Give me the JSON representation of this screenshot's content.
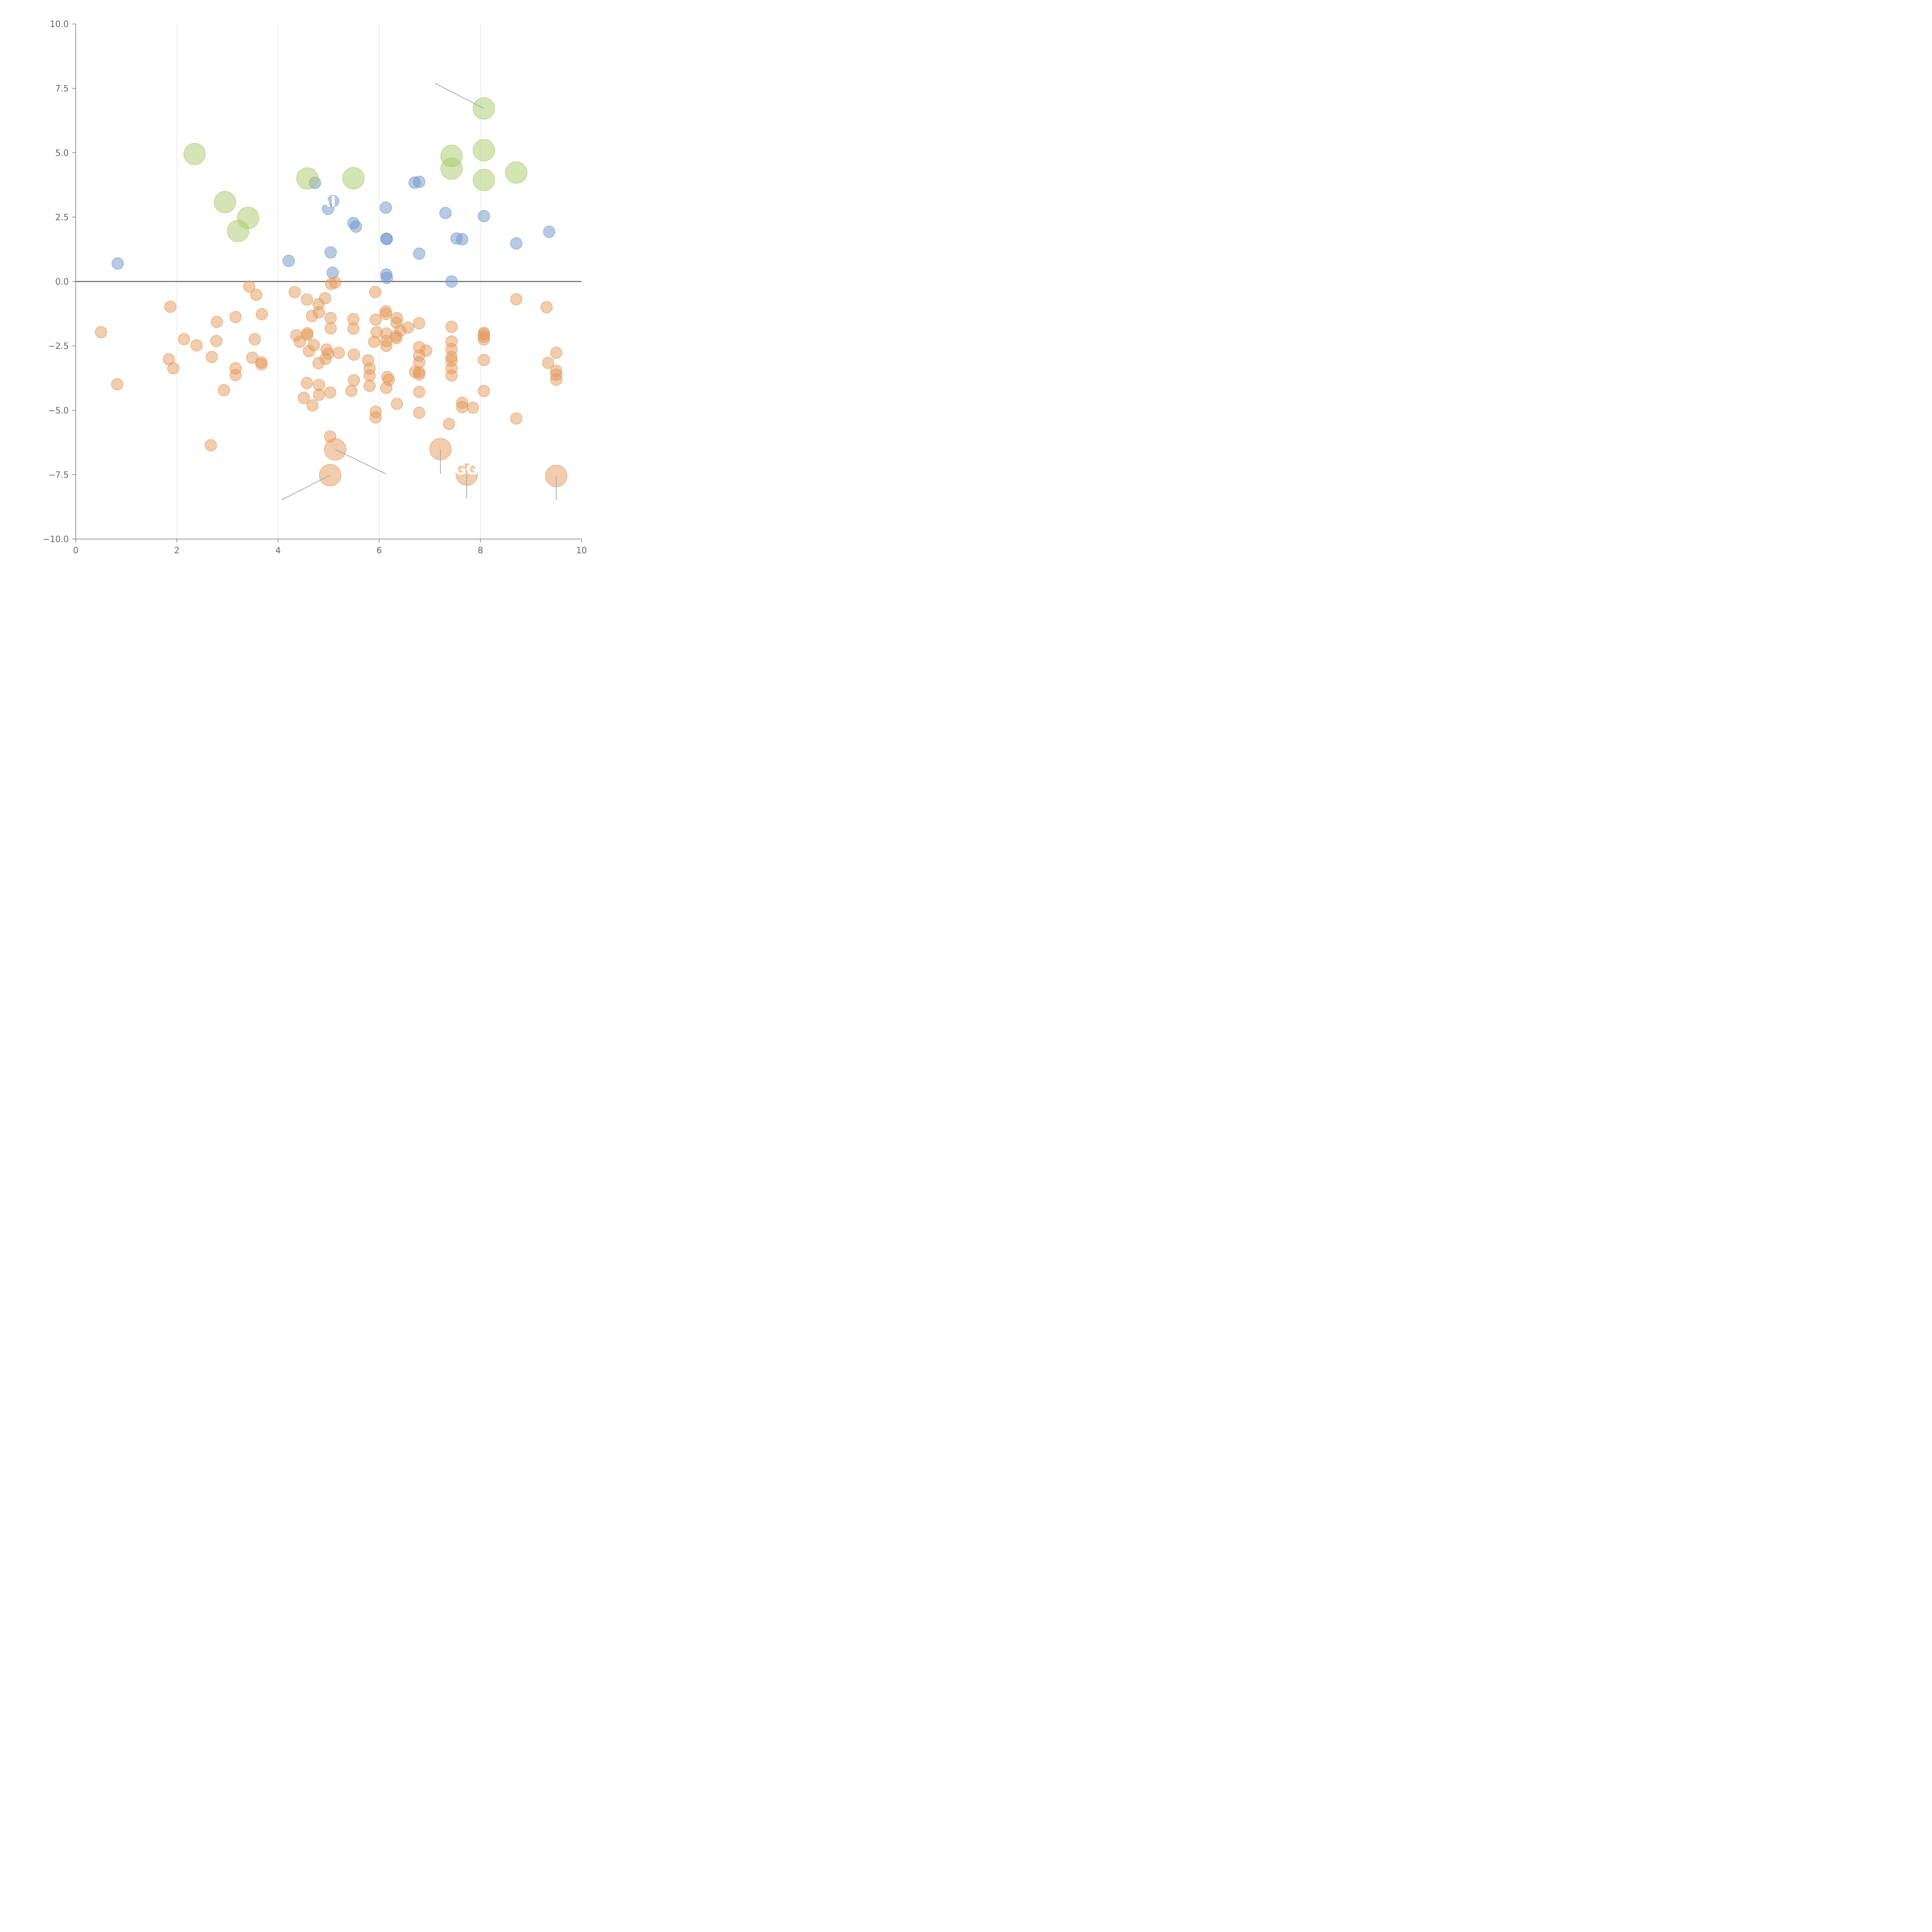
{
  "chart_data": {
    "type": "scatter",
    "title": "",
    "xlabel": "",
    "ylabel": "",
    "xlim": [
      0,
      10
    ],
    "ylim": [
      -10,
      10
    ],
    "x_ticks": [
      0,
      2,
      4,
      6,
      8,
      10
    ],
    "x_tick_labels": [
      "0",
      "2",
      "4",
      "6",
      "8",
      "10"
    ],
    "y_ticks": [
      -10,
      -7.5,
      -5,
      -2.5,
      0,
      2.5,
      5,
      7.5,
      10
    ],
    "y_tick_labels": [
      "−10.0",
      "−7.5",
      "−5.0",
      "−2.5",
      "0.0",
      "2.5",
      "5.0",
      "7.5",
      "10.0"
    ],
    "vertical_grid": true,
    "zero_line": 0,
    "series": [
      {
        "name": "blue",
        "color": "#6f95c9",
        "size": "small",
        "points": [
          [
            0.83,
            0.7
          ],
          [
            4.21,
            0.8
          ],
          [
            4.73,
            3.83
          ],
          [
            4.99,
            2.82
          ],
          [
            5.09,
            3.12
          ],
          [
            5.04,
            1.13
          ],
          [
            5.08,
            0.34
          ],
          [
            5.49,
            2.27
          ],
          [
            5.54,
            2.13
          ],
          [
            6.13,
            2.87
          ],
          [
            6.14,
            1.66
          ],
          [
            6.15,
            1.65
          ],
          [
            6.14,
            0.27
          ],
          [
            6.15,
            0.14
          ],
          [
            6.7,
            3.84
          ],
          [
            6.79,
            3.87
          ],
          [
            6.79,
            1.08
          ],
          [
            7.31,
            2.66
          ],
          [
            7.53,
            1.67
          ],
          [
            7.64,
            1.64
          ],
          [
            7.43,
            0.0
          ],
          [
            8.07,
            2.54
          ],
          [
            8.71,
            1.48
          ],
          [
            9.36,
            1.93
          ]
        ]
      },
      {
        "name": "green",
        "color": "#a9c96b",
        "size": "large",
        "points": [
          [
            2.35,
            4.95
          ],
          [
            2.95,
            3.08
          ],
          [
            3.21,
            1.96
          ],
          [
            3.41,
            2.47
          ],
          [
            4.58,
            4.0
          ],
          [
            5.49,
            4.01
          ],
          [
            7.43,
            4.88
          ],
          [
            7.43,
            4.38
          ],
          [
            8.07,
            6.72
          ],
          [
            8.07,
            5.1
          ],
          [
            8.07,
            3.94
          ],
          [
            8.71,
            4.23
          ]
        ]
      },
      {
        "name": "orange",
        "color": "#e39a5c",
        "size": "small",
        "points": [
          [
            0.5,
            -1.97
          ],
          [
            0.82,
            -3.99
          ],
          [
            1.84,
            -3.02
          ],
          [
            1.87,
            -0.98
          ],
          [
            1.93,
            -3.37
          ],
          [
            2.14,
            -2.24
          ],
          [
            2.39,
            -2.48
          ],
          [
            2.69,
            -2.93
          ],
          [
            2.78,
            -2.31
          ],
          [
            2.79,
            -1.57
          ],
          [
            2.93,
            -4.22
          ],
          [
            3.16,
            -1.38
          ],
          [
            3.16,
            -3.37
          ],
          [
            3.16,
            -3.63
          ],
          [
            3.43,
            -0.2
          ],
          [
            3.49,
            -2.96
          ],
          [
            3.54,
            -2.24
          ],
          [
            3.57,
            -0.52
          ],
          [
            3.67,
            -3.14
          ],
          [
            3.67,
            -3.21
          ],
          [
            3.68,
            -1.27
          ],
          [
            2.67,
            -6.36
          ],
          [
            4.33,
            -0.41
          ],
          [
            4.36,
            -2.09
          ],
          [
            4.43,
            -2.34
          ],
          [
            4.51,
            -4.52
          ],
          [
            4.57,
            -0.7
          ],
          [
            4.58,
            -2.01
          ],
          [
            4.58,
            -2.07
          ],
          [
            4.57,
            -3.94
          ],
          [
            4.61,
            -2.7
          ],
          [
            4.67,
            -1.34
          ],
          [
            4.68,
            -4.81
          ],
          [
            4.71,
            -2.47
          ],
          [
            4.8,
            -0.88
          ],
          [
            4.81,
            -1.2
          ],
          [
            4.8,
            -3.17
          ],
          [
            4.81,
            -4.02
          ],
          [
            4.81,
            -4.4
          ],
          [
            4.93,
            -0.65
          ],
          [
            4.94,
            -3.0
          ],
          [
            4.96,
            -2.64
          ],
          [
            4.99,
            -2.8
          ],
          [
            5.04,
            -1.42
          ],
          [
            5.04,
            -1.82
          ],
          [
            5.03,
            -4.31
          ],
          [
            5.03,
            -6.02
          ],
          [
            5.05,
            -0.1
          ],
          [
            5.13,
            -0.04
          ],
          [
            5.2,
            -2.77
          ],
          [
            5.49,
            -1.46
          ],
          [
            5.49,
            -1.83
          ],
          [
            5.5,
            -2.84
          ],
          [
            5.5,
            -3.84
          ],
          [
            5.45,
            -4.25
          ],
          [
            5.78,
            -3.06
          ],
          [
            5.81,
            -3.38
          ],
          [
            5.81,
            -3.65
          ],
          [
            5.81,
            -4.05
          ],
          [
            5.9,
            -2.34
          ],
          [
            5.92,
            -0.41
          ],
          [
            5.93,
            -1.48
          ],
          [
            5.95,
            -1.97
          ],
          [
            5.93,
            -5.06
          ],
          [
            5.93,
            -5.28
          ],
          [
            6.13,
            -1.16
          ],
          [
            6.13,
            -1.26
          ],
          [
            6.14,
            -2.02
          ],
          [
            6.14,
            -2.31
          ],
          [
            6.14,
            -2.5
          ],
          [
            6.16,
            -3.71
          ],
          [
            6.19,
            -3.82
          ],
          [
            6.14,
            -4.13
          ],
          [
            6.33,
            -2.12
          ],
          [
            6.34,
            -2.2
          ],
          [
            6.35,
            -1.42
          ],
          [
            6.34,
            -1.6
          ],
          [
            6.42,
            -1.9
          ],
          [
            6.35,
            -4.75
          ],
          [
            6.57,
            -1.79
          ],
          [
            6.71,
            -3.51
          ],
          [
            6.79,
            -3.53
          ],
          [
            6.79,
            -3.61
          ],
          [
            6.79,
            -1.62
          ],
          [
            6.79,
            -2.55
          ],
          [
            6.79,
            -2.88
          ],
          [
            6.79,
            -3.14
          ],
          [
            6.79,
            -4.29
          ],
          [
            6.79,
            -5.1
          ],
          [
            6.93,
            -2.68
          ],
          [
            7.43,
            -1.76
          ],
          [
            7.43,
            -2.33
          ],
          [
            7.43,
            -2.63
          ],
          [
            7.43,
            -2.93
          ],
          [
            7.43,
            -3.07
          ],
          [
            7.43,
            -3.37
          ],
          [
            7.43,
            -3.65
          ],
          [
            7.38,
            -5.53
          ],
          [
            7.64,
            -4.71
          ],
          [
            7.64,
            -4.88
          ],
          [
            7.85,
            -4.9
          ],
          [
            8.07,
            -2.0
          ],
          [
            8.07,
            -2.05
          ],
          [
            8.07,
            -2.15
          ],
          [
            8.07,
            -2.25
          ],
          [
            8.07,
            -3.05
          ],
          [
            8.07,
            -4.25
          ],
          [
            8.71,
            -0.69
          ],
          [
            8.71,
            -5.32
          ],
          [
            9.31,
            -1.0
          ],
          [
            9.34,
            -3.16
          ],
          [
            9.5,
            -2.77
          ],
          [
            9.5,
            -3.47
          ],
          [
            9.5,
            -3.62
          ],
          [
            9.5,
            -3.81
          ]
        ]
      },
      {
        "name": "orange-large",
        "color": "#e39a5c",
        "size": "large",
        "points": [
          [
            5.03,
            -7.52
          ],
          [
            5.13,
            -6.52
          ],
          [
            7.21,
            -6.51
          ],
          [
            7.73,
            -7.5
          ],
          [
            9.5,
            -7.55
          ]
        ]
      }
    ],
    "annotations": [
      {
        "text": "AI",
        "x": 4.98,
        "y": 3.1
      },
      {
        "text": "GG",
        "x": 7.72,
        "y": -7.3
      }
    ],
    "leader_lines": [
      [
        8.07,
        6.72,
        7.1,
        7.7
      ],
      [
        5.03,
        -7.52,
        4.07,
        -8.48
      ],
      [
        5.13,
        -6.52,
        6.13,
        -7.47
      ],
      [
        7.21,
        -6.51,
        7.21,
        -7.47
      ],
      [
        7.73,
        -7.5,
        7.73,
        -8.42
      ],
      [
        9.5,
        -7.55,
        9.5,
        -8.48
      ]
    ]
  }
}
